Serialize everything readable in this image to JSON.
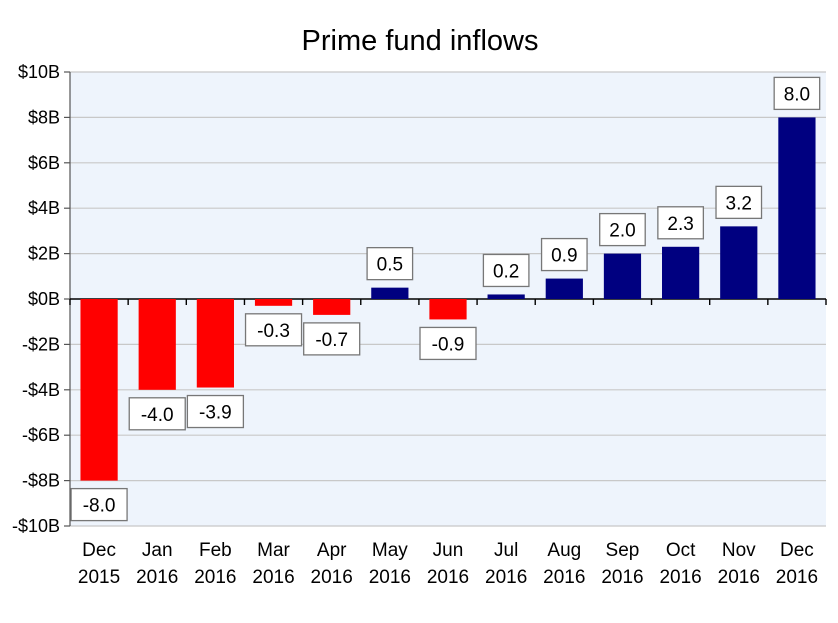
{
  "chart_data": {
    "type": "bar",
    "title": "Prime fund inflows",
    "xlabel": "",
    "ylabel": "",
    "ylim": [
      -10,
      10
    ],
    "yticks": [
      {
        "value": 10,
        "label": "$10B"
      },
      {
        "value": 8,
        "label": "$8B"
      },
      {
        "value": 6,
        "label": "$6B"
      },
      {
        "value": 4,
        "label": "$4B"
      },
      {
        "value": 2,
        "label": "$2B"
      },
      {
        "value": 0,
        "label": "$0B"
      },
      {
        "value": -2,
        "label": "-$2B"
      },
      {
        "value": -4,
        "label": "-$4B"
      },
      {
        "value": -6,
        "label": "-$6B"
      },
      {
        "value": -8,
        "label": "-$8B"
      },
      {
        "value": -10,
        "label": "-$10B"
      }
    ],
    "categories": [
      {
        "month": "Dec",
        "year": "2015"
      },
      {
        "month": "Jan",
        "year": "2016"
      },
      {
        "month": "Feb",
        "year": "2016"
      },
      {
        "month": "Mar",
        "year": "2016"
      },
      {
        "month": "Apr",
        "year": "2016"
      },
      {
        "month": "May",
        "year": "2016"
      },
      {
        "month": "Jun",
        "year": "2016"
      },
      {
        "month": "Jul",
        "year": "2016"
      },
      {
        "month": "Aug",
        "year": "2016"
      },
      {
        "month": "Sep",
        "year": "2016"
      },
      {
        "month": "Oct",
        "year": "2016"
      },
      {
        "month": "Nov",
        "year": "2016"
      },
      {
        "month": "Dec",
        "year": "2016"
      }
    ],
    "values": [
      -8.0,
      -4.0,
      -3.9,
      -0.3,
      -0.7,
      0.5,
      -0.9,
      0.2,
      0.9,
      2.0,
      2.3,
      3.2,
      8.0
    ],
    "data_labels": [
      "-8.0",
      "-4.0",
      "-3.9",
      "-0.3",
      "-0.7",
      "0.5",
      "-0.9",
      "0.2",
      "0.9",
      "2.0",
      "2.3",
      "3.2",
      "8.0"
    ],
    "grid": true,
    "colors": {
      "positive": "#000080",
      "negative": "#ff0000",
      "plot_background": "#eef4fc",
      "gridline": "#c8c8c8"
    }
  }
}
